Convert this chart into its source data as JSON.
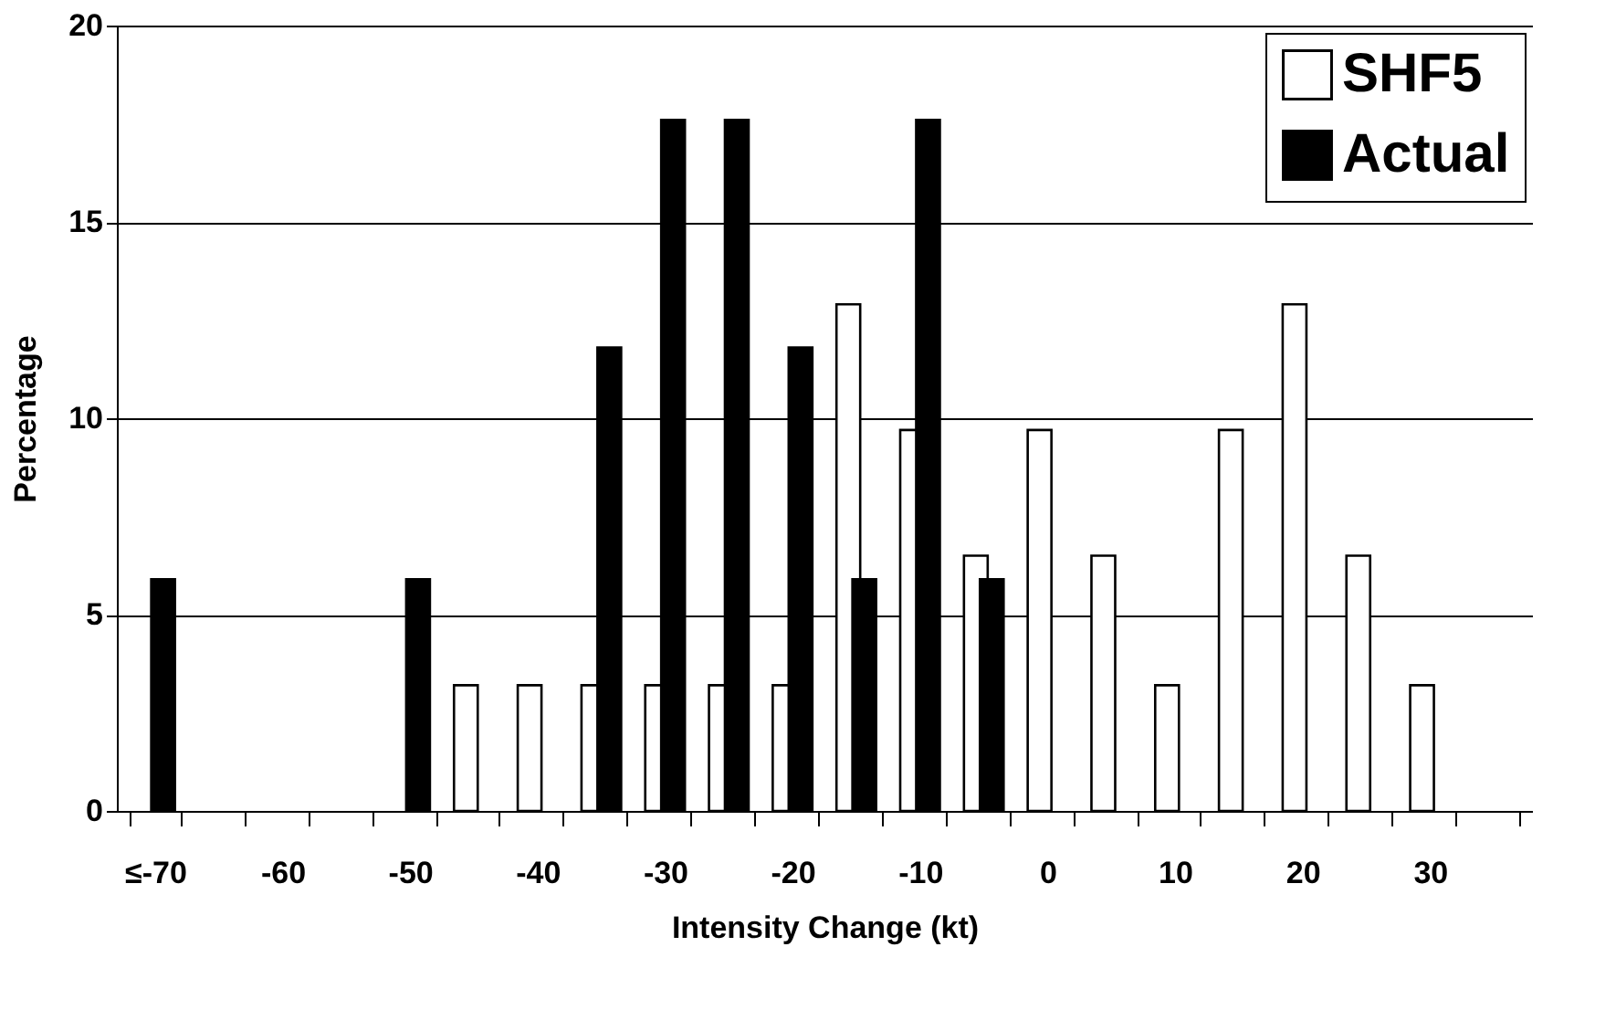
{
  "chart_data": {
    "type": "bar",
    "xlabel": "Intensity Change (kt)",
    "ylabel": "Percentage",
    "categories": [
      "≤-70",
      null,
      "-60",
      null,
      "-50",
      null,
      "-40",
      null,
      "-30",
      null,
      "-20",
      null,
      "-10",
      null,
      "0",
      null,
      "10",
      null,
      "20",
      null,
      "30",
      null
    ],
    "series": [
      {
        "name": "SHF5",
        "color": "#ffffff",
        "values": [
          null,
          null,
          null,
          null,
          null,
          3.2,
          3.2,
          3.2,
          3.2,
          3.2,
          3.2,
          12.9,
          9.7,
          6.5,
          9.7,
          6.5,
          3.2,
          9.7,
          12.9,
          6.5,
          3.2,
          null
        ]
      },
      {
        "name": "Actual",
        "color": "#000000",
        "values": [
          5.9,
          null,
          null,
          null,
          5.9,
          null,
          null,
          11.8,
          17.6,
          17.6,
          11.8,
          5.9,
          17.6,
          5.9,
          null,
          null,
          null,
          null,
          null,
          null,
          null,
          null
        ]
      }
    ],
    "ylim": [
      0,
      20
    ],
    "yticks": [
      0,
      5,
      10,
      15,
      20
    ],
    "grid": "y",
    "legend": "top right"
  }
}
